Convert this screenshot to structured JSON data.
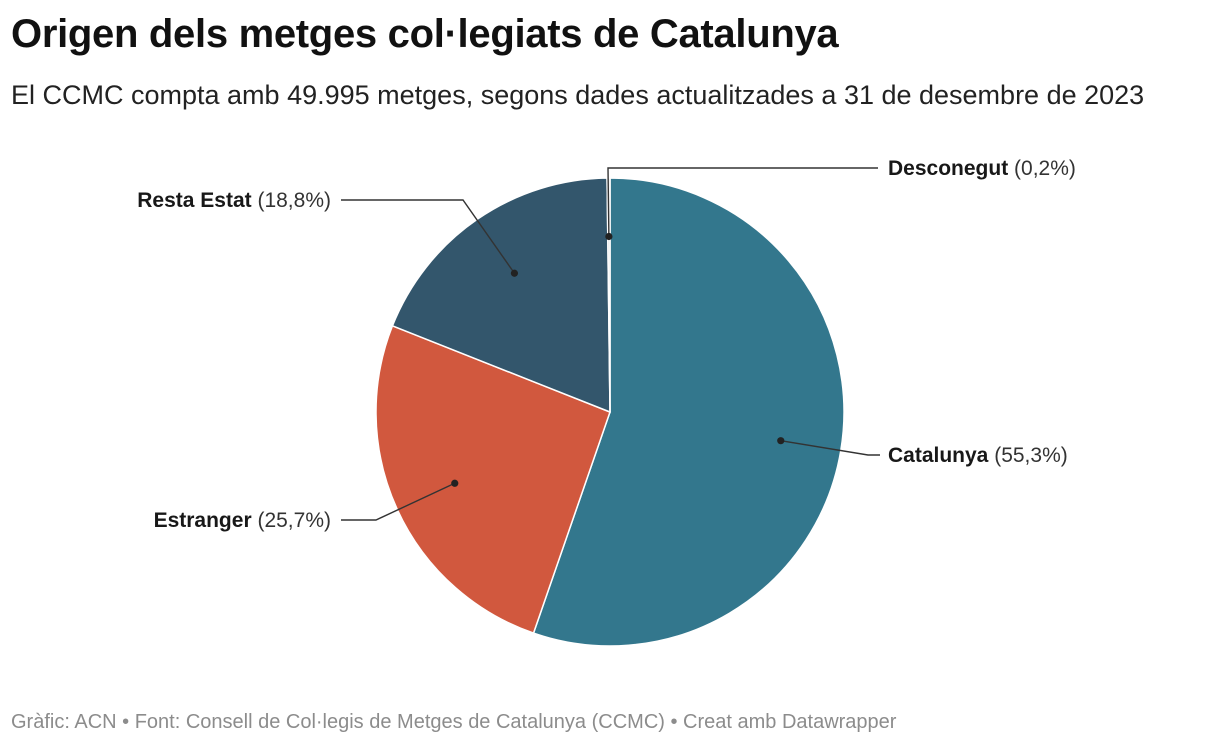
{
  "header": {
    "title": "Origen dels metges col·legiats de Catalunya",
    "subtitle": "El CCMC compta amb 49.995 metges, segons dades actualitzades a 31 de desembre de 2023"
  },
  "footer": {
    "text": "Gràfic: ACN • Font: Consell de Col·legis de Metges de Catalunya (CCMC) • Creat amb Datawrapper"
  },
  "chart_data": {
    "type": "pie",
    "title": "Origen dels metges col·legiats de Catalunya",
    "subtitle": "El CCMC compta amb 49.995 metges, segons dades actualitzades a 31 de desembre de 2023",
    "unit": "%",
    "slices": [
      {
        "name": "Catalunya",
        "value": 55.3,
        "label": "(55,3%)",
        "color": "#33778d"
      },
      {
        "name": "Estranger",
        "value": 25.7,
        "label": "(25,7%)",
        "color": "#d1583e"
      },
      {
        "name": "Resta Estat",
        "value": 18.8,
        "label": "(18,8%)",
        "color": "#33566c"
      },
      {
        "name": "Desconegut",
        "value": 0.2,
        "label": "(0,2%)",
        "color": "#d9d9d9"
      }
    ]
  }
}
